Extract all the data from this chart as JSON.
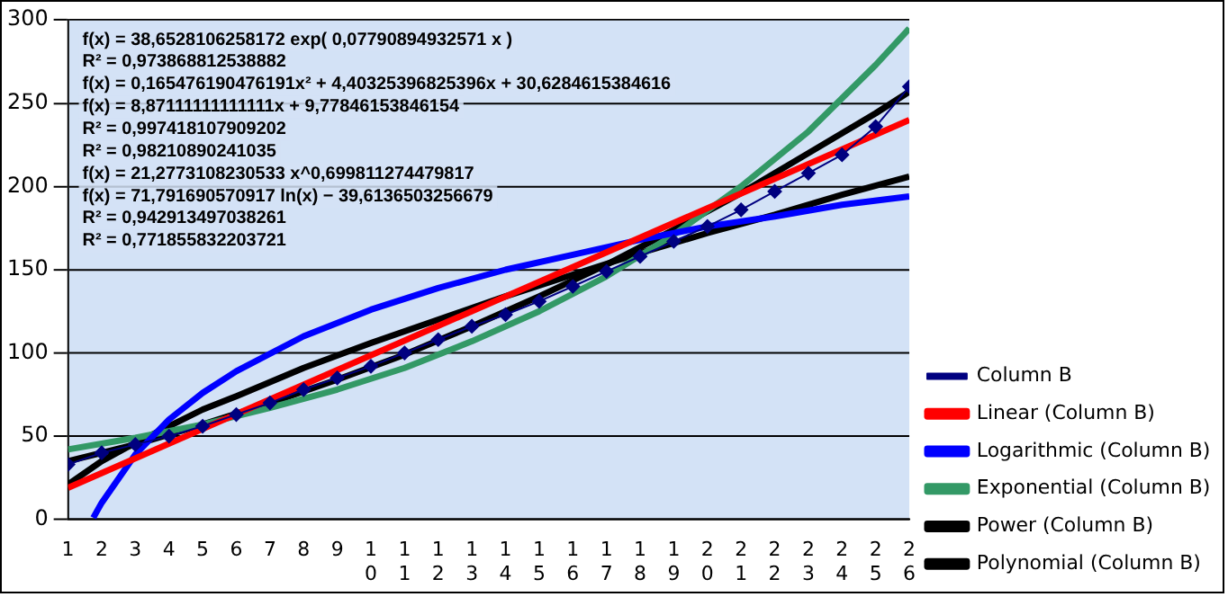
{
  "chart_data": {
    "type": "line",
    "x": [
      1,
      2,
      3,
      4,
      5,
      6,
      7,
      8,
      9,
      10,
      11,
      12,
      13,
      14,
      15,
      16,
      17,
      18,
      19,
      20,
      21,
      22,
      23,
      24,
      25,
      26
    ],
    "xlim": [
      1,
      26
    ],
    "xticks": [
      1,
      2,
      3,
      4,
      5,
      6,
      7,
      8,
      9,
      10,
      11,
      12,
      13,
      14,
      15,
      16,
      17,
      18,
      19,
      20,
      21,
      22,
      23,
      24,
      25,
      26
    ],
    "ylim": [
      0,
      300
    ],
    "yticks": [
      0,
      50,
      100,
      150,
      200,
      250,
      300
    ],
    "grid": "y",
    "legend": "bottom right",
    "series": [
      {
        "name": "Column B",
        "color": "#000080",
        "marker": "diamond",
        "values": [
          33,
          40,
          45,
          50,
          56,
          63,
          70,
          78,
          85,
          92,
          100,
          108,
          116,
          123,
          131,
          140,
          149,
          158,
          167,
          176,
          186,
          197,
          208,
          219,
          236,
          260
        ]
      },
      {
        "name": "Linear (Column B)",
        "marker": "none",
        "color": "#ff0000",
        "x": [
          1,
          26
        ],
        "values": [
          19,
          240
        ]
      },
      {
        "name": "Logarithmic (Column B)",
        "marker": "none",
        "color": "#0000ff",
        "x": [
          1.75,
          2,
          3,
          4,
          5,
          6,
          8,
          10,
          12,
          14,
          16,
          18,
          20,
          22,
          24,
          26
        ],
        "values": [
          1,
          10,
          39,
          60,
          76,
          89,
          110,
          126,
          139,
          150,
          159,
          168,
          176,
          182,
          189,
          194
        ]
      },
      {
        "name": "Exponential (Column B)",
        "marker": "none",
        "color": "#339966",
        "x": [
          1,
          3,
          5,
          7,
          9,
          11,
          13,
          15,
          17,
          19,
          21,
          23,
          25,
          26
        ],
        "values": [
          42,
          49,
          57,
          67,
          78,
          91,
          107,
          125,
          146,
          171,
          200,
          233,
          273,
          295
        ]
      },
      {
        "name": "Power (Column B)",
        "marker": "none",
        "color": "#000000",
        "x": [
          1,
          2,
          3,
          4,
          5,
          6,
          8,
          10,
          12,
          14,
          16,
          18,
          20,
          22,
          24,
          26
        ],
        "values": [
          21,
          35,
          46,
          56,
          66,
          74,
          91,
          106,
          120,
          134,
          147,
          160,
          172,
          183,
          195,
          206
        ]
      },
      {
        "name": "Polynomial (Column B)",
        "marker": "none",
        "color": "#000000",
        "x": [
          1,
          3,
          5,
          7,
          9,
          11,
          13,
          15,
          17,
          19,
          21,
          23,
          25,
          26
        ],
        "values": [
          35,
          45,
          57,
          70,
          84,
          99,
          116,
          134,
          153,
          174,
          196,
          220,
          244,
          257
        ]
      }
    ],
    "annotations": [
      "f(x) = 38,6528106258172 exp( 0,07790894932571 x )",
      "R² = 0,973868812538882",
      "f(x) = 0,165476190476191x² + 4,40325396825396x + 30,6284615384616",
      "f(x) = 8,87111111111111x + 9,77846153846154",
      "R² = 0,997418107909202",
      "R² = 0,98210890241035",
      "f(x) = 21,2773108230533 x^0,699811274479817",
      "f(x) = 71,791690570917 ln(x) − 39,6136503256679",
      "R² = 0,942913497038261",
      "R² = 0,771855832203721"
    ]
  }
}
